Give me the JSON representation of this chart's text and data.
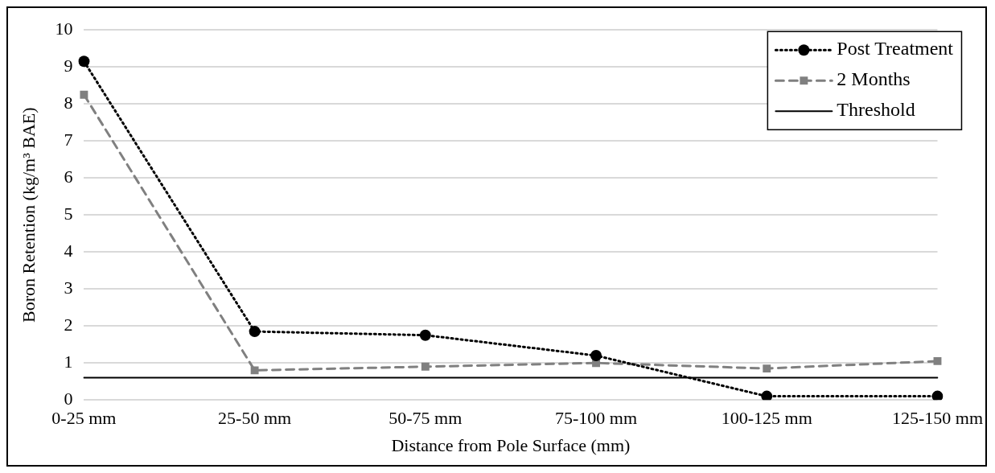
{
  "chart_data": {
    "type": "line",
    "xlabel": "Distance from Pole Surface (mm)",
    "ylabel": "Boron Retention (kg/m³ BAE)",
    "categories": [
      "0-25 mm",
      "25-50 mm",
      "50-75 mm",
      "75-100 mm",
      "100-125 mm",
      "125-150 mm"
    ],
    "series": [
      {
        "name": "Post Treatment",
        "color": "#000000",
        "marker": "circle",
        "line_style": "dotted",
        "values": [
          9.15,
          1.85,
          1.75,
          1.2,
          0.1,
          0.1
        ]
      },
      {
        "name": "2 Months",
        "color": "#808080",
        "marker": "square",
        "line_style": "dashed",
        "values": [
          8.25,
          0.8,
          0.9,
          1.0,
          0.85,
          1.05
        ]
      },
      {
        "name": "Threshold",
        "color": "#000000",
        "marker": "none",
        "line_style": "solid",
        "values": [
          0.6,
          0.6,
          0.6,
          0.6,
          0.6,
          0.6
        ]
      }
    ],
    "ylim": [
      0,
      10
    ],
    "yticks": [
      0,
      1,
      2,
      3,
      4,
      5,
      6,
      7,
      8,
      9,
      10
    ],
    "grid": "y",
    "legend": "top right"
  }
}
